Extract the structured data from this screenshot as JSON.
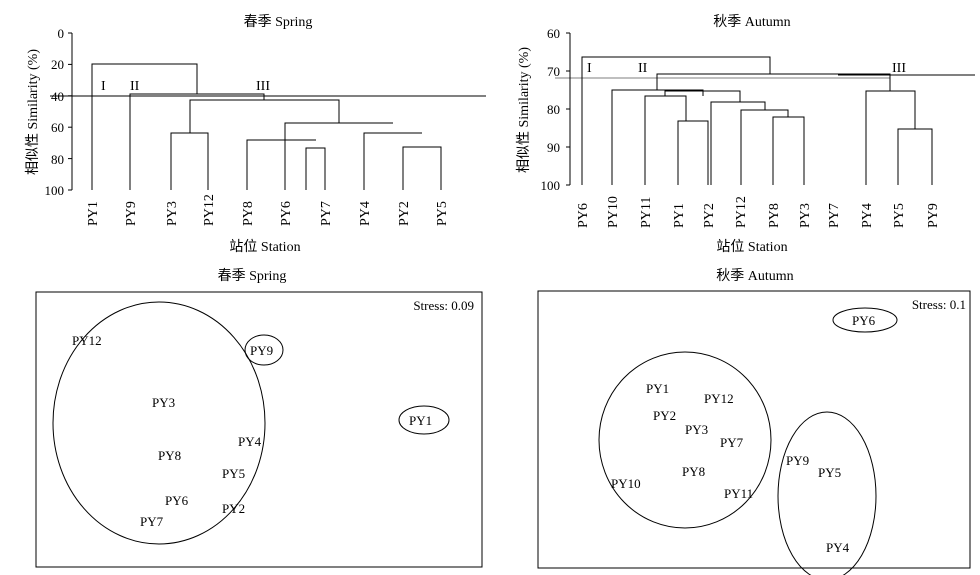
{
  "dendrogram_spring": {
    "title": "春季 Spring",
    "ylabel": "相似性 Similarity (%)",
    "xlabel": "站位 Station",
    "yticks": [
      "0",
      "20",
      "40",
      "60",
      "80",
      "100"
    ],
    "leaves": [
      "PY1",
      "PY9",
      "PY3",
      "PY12",
      "PY8",
      "PY6",
      "PY7",
      "PY4",
      "PY2",
      "PY5"
    ],
    "groups": [
      "I",
      "II",
      "III"
    ],
    "cut_level": 40
  },
  "dendrogram_autumn": {
    "title": "秋季 Autumn",
    "ylabel": "相似性 Similarity (%)",
    "xlabel": "站位 Station",
    "yticks": [
      "60",
      "70",
      "80",
      "90",
      "100"
    ],
    "leaves": [
      "PY6",
      "PY10",
      "PY11",
      "PY1",
      "PY2",
      "PY12",
      "PY8",
      "PY3",
      "PY7",
      "PY4",
      "PY5",
      "PY9"
    ],
    "groups": [
      "I",
      "II",
      "III"
    ],
    "cut_level": 72
  },
  "nmds_spring": {
    "title": "春季 Spring",
    "stress": "Stress: 0.09",
    "points": [
      "PY12",
      "PY9",
      "PY3",
      "PY4",
      "PY1",
      "PY8",
      "PY5",
      "PY6",
      "PY2",
      "PY7"
    ]
  },
  "nmds_autumn": {
    "title": "秋季 Autumn",
    "stress": "Stress: 0.1",
    "points": [
      "PY6",
      "PY1",
      "PY12",
      "PY2",
      "PY3",
      "PY7",
      "PY9",
      "PY5",
      "PY8",
      "PY10",
      "PY11",
      "PY4"
    ]
  }
}
